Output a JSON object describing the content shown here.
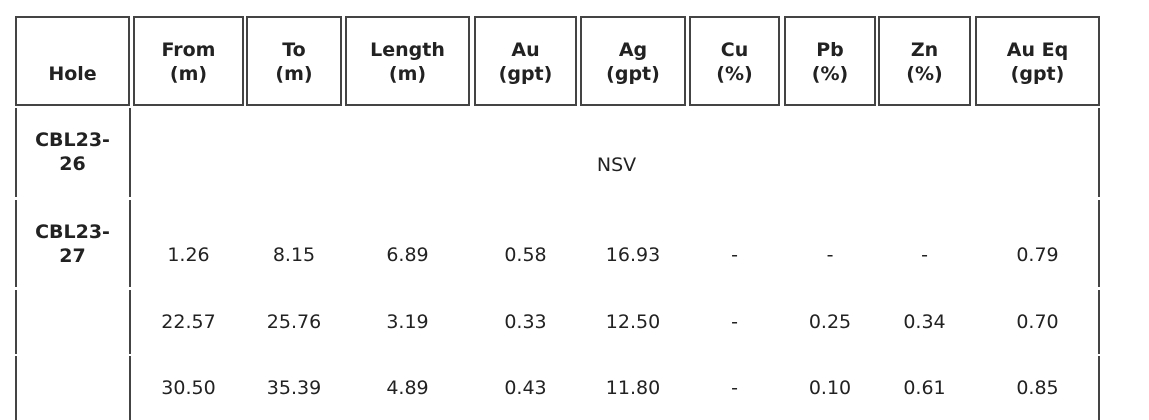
{
  "table": {
    "header": [
      {
        "name": "Hole"
      },
      {
        "name": "From",
        "unit": "(m)"
      },
      {
        "name": "To",
        "unit": "(m)"
      },
      {
        "name": "Length",
        "unit": "(m)"
      },
      {
        "name": "Au",
        "unit": "(gpt)"
      },
      {
        "name": "Ag",
        "unit": "(gpt)"
      },
      {
        "name": "Cu",
        "unit": "(%)"
      },
      {
        "name": "Pb",
        "unit": "(%)"
      },
      {
        "name": "Zn",
        "unit": "(%)"
      },
      {
        "name": "Au Eq",
        "unit": "(gpt)"
      }
    ],
    "rows": [
      {
        "hole": "CBL23-26",
        "note": "NSV"
      },
      {
        "hole": "CBL23-27",
        "cells": [
          "1.26",
          "8.15",
          "6.89",
          "0.58",
          "16.93",
          "-",
          "-",
          "-",
          "0.79"
        ]
      },
      {
        "cells": [
          "22.57",
          "25.76",
          "3.19",
          "0.33",
          "12.50",
          "-",
          "0.25",
          "0.34",
          "0.70"
        ]
      },
      {
        "cells": [
          "30.50",
          "35.39",
          "4.89",
          "0.43",
          "11.80",
          "-",
          "0.10",
          "0.61",
          "0.85"
        ]
      }
    ]
  }
}
